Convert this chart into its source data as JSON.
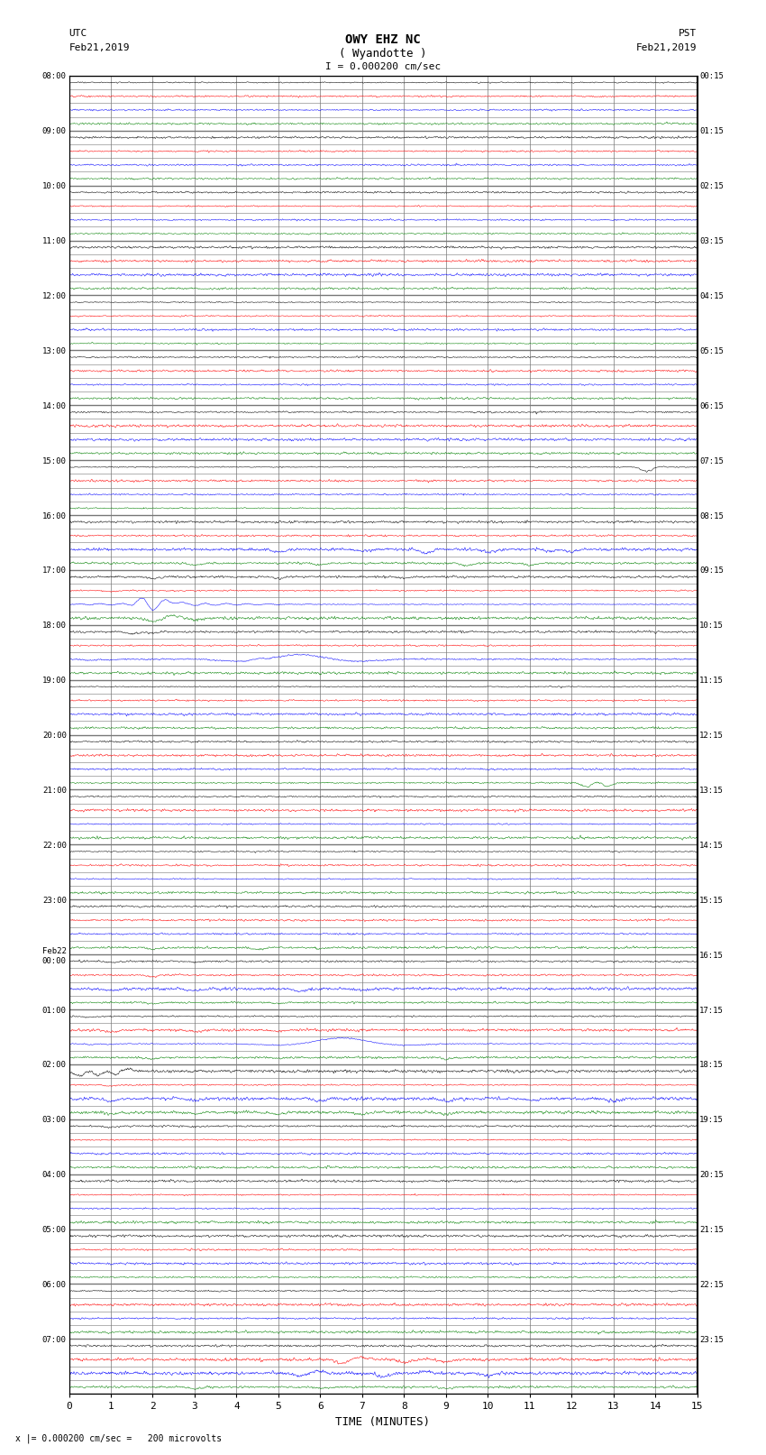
{
  "title_line1": "OWY EHZ NC",
  "title_line2": "( Wyandotte )",
  "scale_label": "I = 0.000200 cm/sec",
  "left_label_top": "UTC",
  "left_label_date": "Feb21,2019",
  "right_label_top": "PST",
  "right_label_date": "Feb21,2019",
  "xlabel": "TIME (MINUTES)",
  "bottom_note": "x |= 0.000200 cm/sec =   200 microvolts",
  "left_times": [
    "08:00",
    "",
    "",
    "",
    "09:00",
    "",
    "",
    "",
    "10:00",
    "",
    "",
    "",
    "11:00",
    "",
    "",
    "",
    "12:00",
    "",
    "",
    "",
    "13:00",
    "",
    "",
    "",
    "14:00",
    "",
    "",
    "",
    "15:00",
    "",
    "",
    "",
    "16:00",
    "",
    "",
    "",
    "17:00",
    "",
    "",
    "",
    "18:00",
    "",
    "",
    "",
    "19:00",
    "",
    "",
    "",
    "20:00",
    "",
    "",
    "",
    "21:00",
    "",
    "",
    "",
    "22:00",
    "",
    "",
    "",
    "23:00",
    "",
    "",
    "",
    "Feb22\n00:00",
    "",
    "",
    "",
    "01:00",
    "",
    "",
    "",
    "02:00",
    "",
    "",
    "",
    "03:00",
    "",
    "",
    "",
    "04:00",
    "",
    "",
    "",
    "05:00",
    "",
    "",
    "",
    "06:00",
    "",
    "",
    "",
    "07:00",
    "",
    "",
    ""
  ],
  "right_times": [
    "00:15",
    "",
    "",
    "",
    "01:15",
    "",
    "",
    "",
    "02:15",
    "",
    "",
    "",
    "03:15",
    "",
    "",
    "",
    "04:15",
    "",
    "",
    "",
    "05:15",
    "",
    "",
    "",
    "06:15",
    "",
    "",
    "",
    "07:15",
    "",
    "",
    "",
    "08:15",
    "",
    "",
    "",
    "09:15",
    "",
    "",
    "",
    "10:15",
    "",
    "",
    "",
    "11:15",
    "",
    "",
    "",
    "12:15",
    "",
    "",
    "",
    "13:15",
    "",
    "",
    "",
    "14:15",
    "",
    "",
    "",
    "15:15",
    "",
    "",
    "",
    "16:15",
    "",
    "",
    "",
    "17:15",
    "",
    "",
    "",
    "18:15",
    "",
    "",
    "",
    "19:15",
    "",
    "",
    "",
    "20:15",
    "",
    "",
    "",
    "21:15",
    "",
    "",
    "",
    "22:15",
    "",
    "",
    "",
    "23:15",
    "",
    "",
    ""
  ],
  "n_rows": 96,
  "n_cols": 15,
  "bg_color": "#ffffff",
  "grid_color": "#777777",
  "fig_width": 8.5,
  "fig_height": 16.13,
  "trace_row_colors": [
    "black",
    "red",
    "blue",
    "green"
  ]
}
